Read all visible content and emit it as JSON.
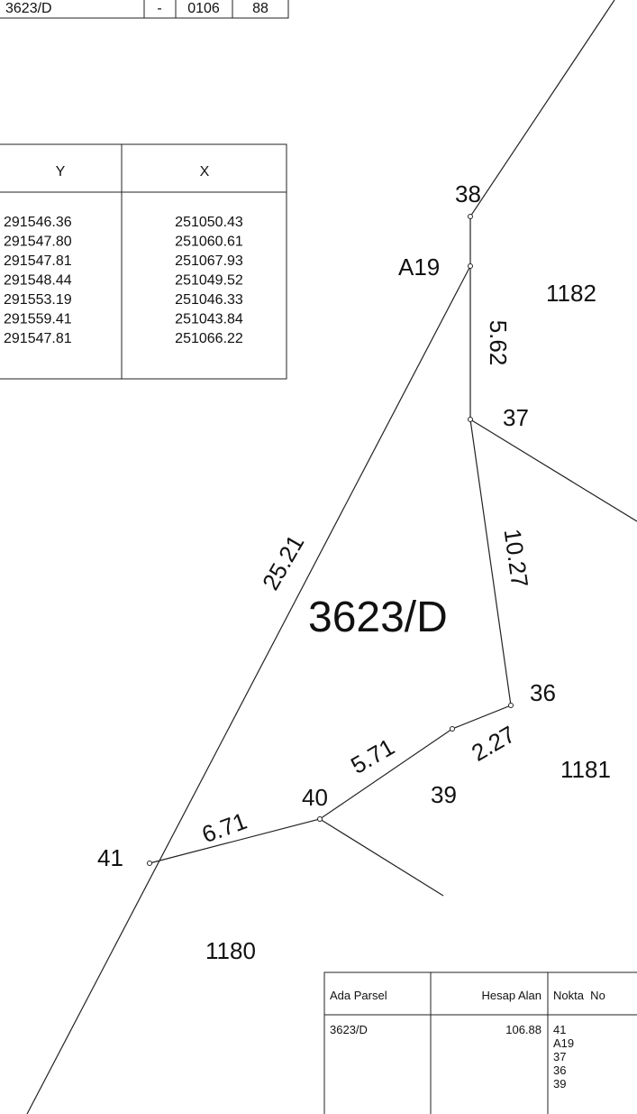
{
  "top_table": {
    "row": [
      "3623/D",
      "-",
      "0106",
      "88"
    ]
  },
  "coordinate_table": {
    "headers": [
      "Y",
      "X"
    ],
    "rows": [
      [
        "291546.36",
        "251050.43"
      ],
      [
        "291547.80",
        "251060.61"
      ],
      [
        "291547.81",
        "251067.93"
      ],
      [
        "291548.44",
        "251049.52"
      ],
      [
        "291553.19",
        "251046.33"
      ],
      [
        "291559.41",
        "251043.84"
      ],
      [
        "291547.81",
        "251066.22"
      ]
    ]
  },
  "map": {
    "points": [
      "38",
      "A19",
      "37",
      "36",
      "39",
      "40",
      "41"
    ],
    "distances": [
      "5.62",
      "25.21",
      "10.27",
      "2.27",
      "5.71",
      "6.71"
    ],
    "parcels": [
      "1182",
      "3623/D",
      "1181",
      "1180"
    ]
  },
  "area_table": {
    "headers": [
      "Ada Parsel",
      "Hesap Alan",
      "Nokta  No"
    ],
    "row": {
      "parcel": "3623/D",
      "area": "106.88",
      "points": [
        "41",
        "A19",
        "37",
        "36",
        "39"
      ]
    }
  }
}
